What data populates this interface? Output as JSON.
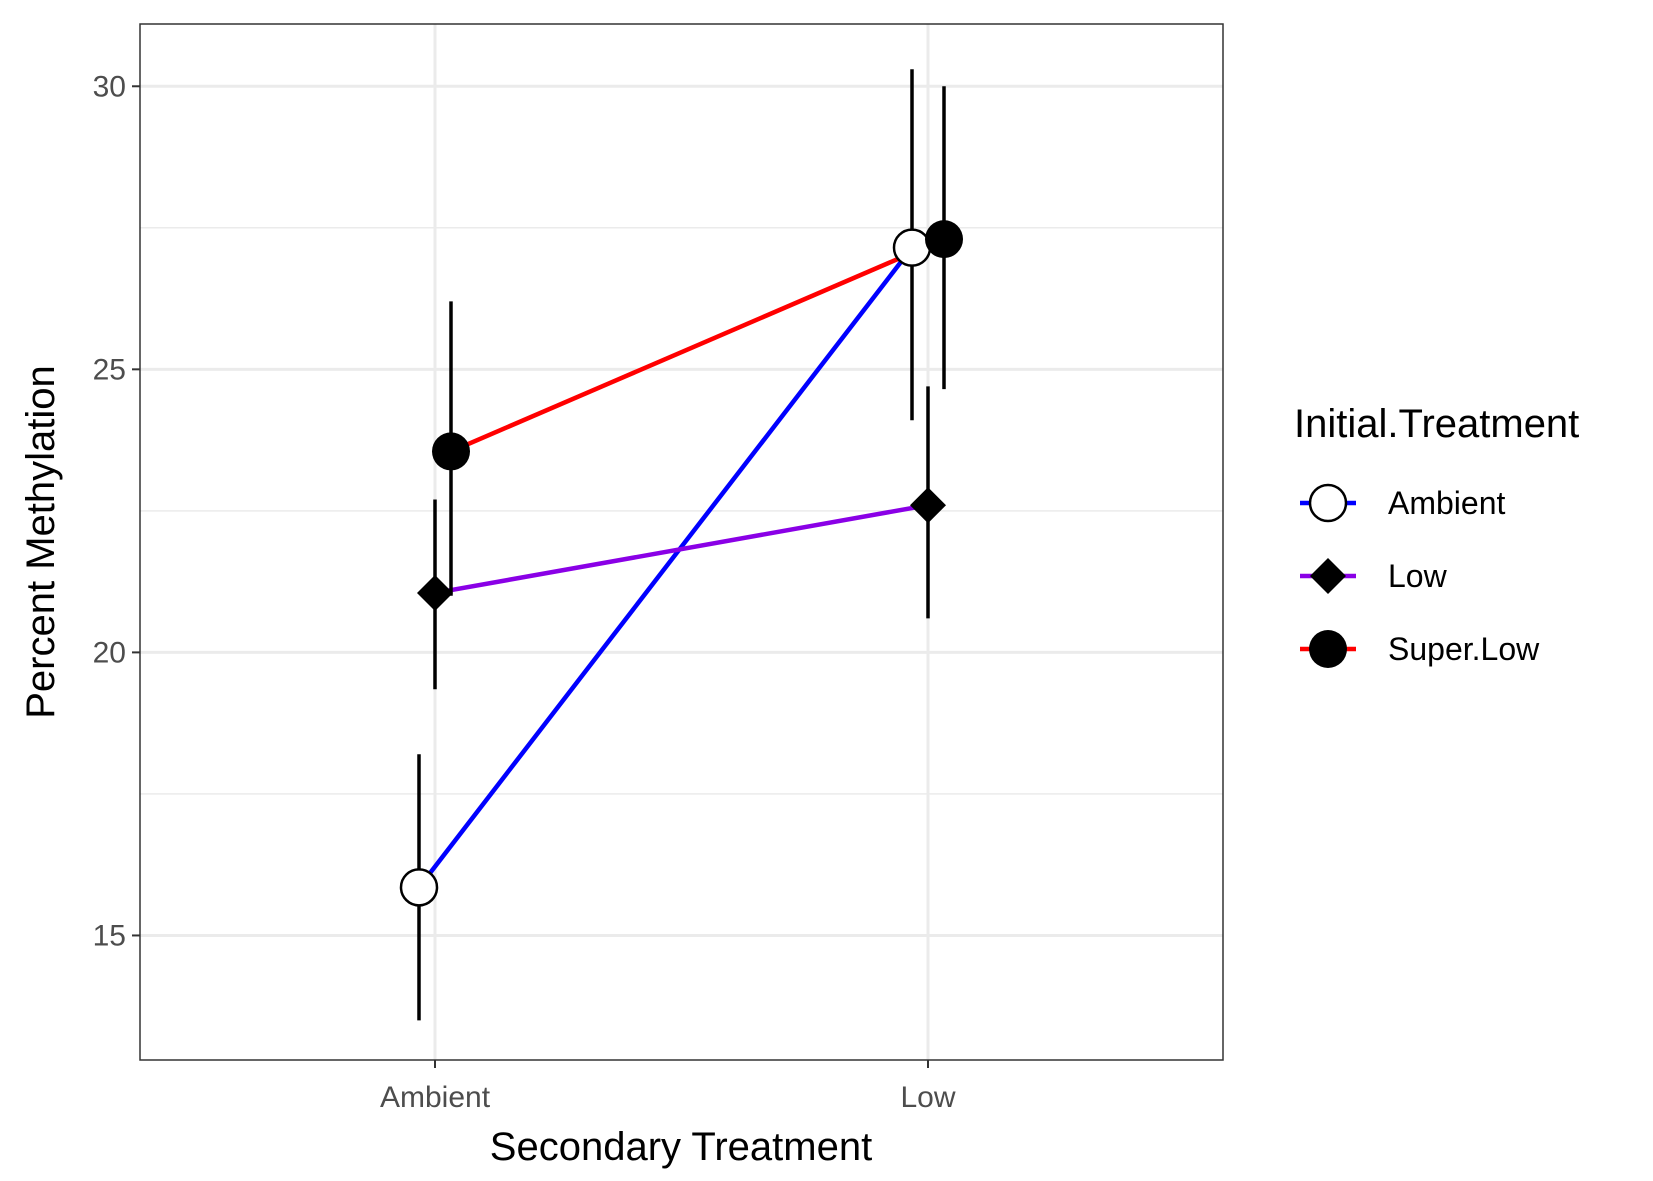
{
  "chart_data": {
    "type": "line",
    "xlabel": "Secondary Treatment",
    "ylabel": "Percent Methylation",
    "categories": [
      "Ambient",
      "Low"
    ],
    "ylim": [
      12.8,
      31.1
    ],
    "yticks": [
      15,
      20,
      25,
      30
    ],
    "grid": true,
    "legend": {
      "title": "Initial.Treatment",
      "position": "right"
    },
    "series": [
      {
        "name": "Ambient",
        "color": "#0000ff",
        "marker": "open-circle",
        "values": [
          15.85,
          27.15
        ],
        "lower": [
          13.5,
          24.1
        ],
        "upper": [
          18.2,
          30.3
        ]
      },
      {
        "name": "Low",
        "color": "#8a00e6",
        "marker": "diamond",
        "values": [
          21.05,
          22.6
        ],
        "lower": [
          19.35,
          20.6
        ],
        "upper": [
          22.7,
          24.7
        ]
      },
      {
        "name": "Super.Low",
        "color": "#ff0000",
        "marker": "filled-circle",
        "values": [
          23.55,
          27.3
        ],
        "lower": [
          21.0,
          24.65
        ],
        "upper": [
          26.2,
          30.0
        ]
      }
    ]
  }
}
